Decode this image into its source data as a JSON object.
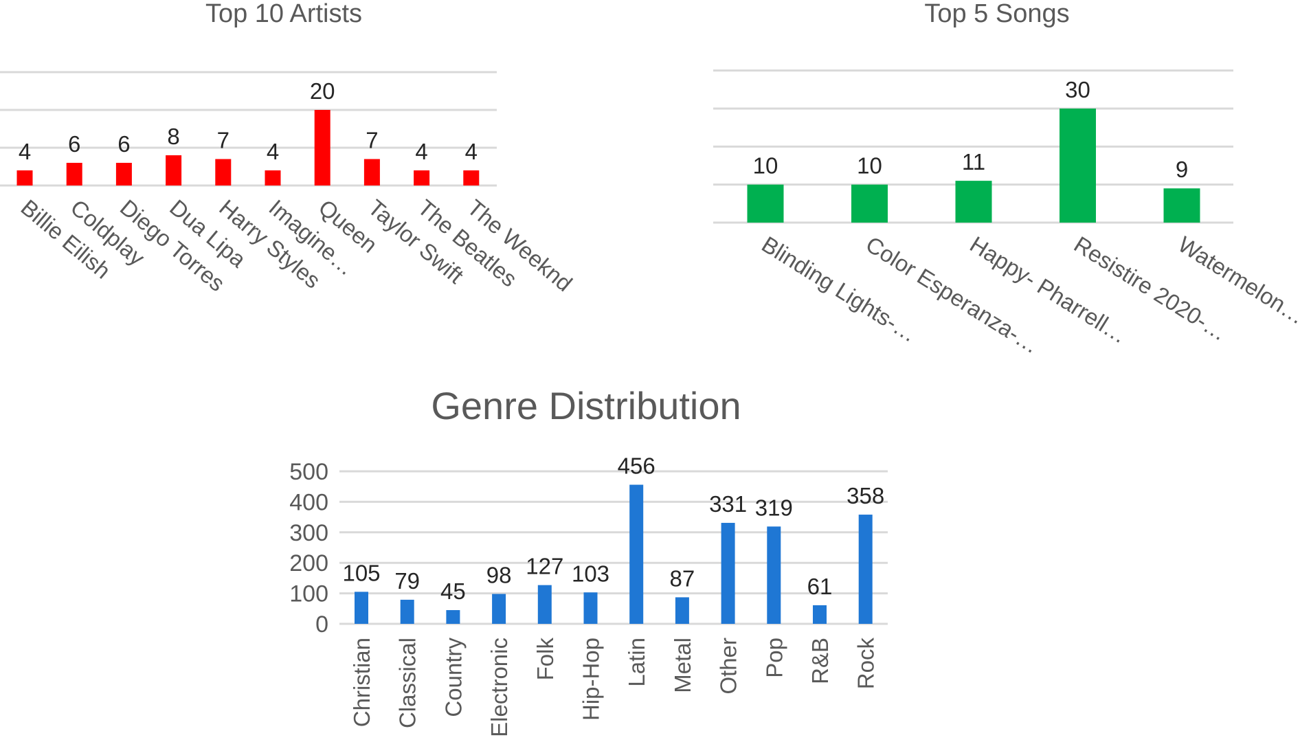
{
  "chart_data": [
    {
      "type": "bar",
      "title": "Top 10 Artists",
      "categories": [
        "Billie Eilish",
        "Coldplay",
        "Diego Torres",
        "Dua Lipa",
        "Harry Styles",
        "Imagine…",
        "Queen",
        "Taylor Swift",
        "The Beatles",
        "The Weeknd"
      ],
      "values": [
        4,
        6,
        6,
        8,
        7,
        4,
        20,
        7,
        4,
        4
      ],
      "color": "#ff0000",
      "ylim": [
        0,
        20
      ],
      "grid": true,
      "y_axis_labels": false,
      "data_labels": true
    },
    {
      "type": "bar",
      "title": "Top 5 Songs",
      "categories": [
        "Blinding Lights-…",
        "Color Esperanza-…",
        "Happy- Pharrell…",
        "Resistire 2020-…",
        "Watermelon…"
      ],
      "values": [
        10,
        10,
        11,
        30,
        9
      ],
      "color": "#00b050",
      "ylim": [
        0,
        30
      ],
      "grid": true,
      "y_axis_labels": false,
      "data_labels": true
    },
    {
      "type": "bar",
      "title": "Genre Distribution",
      "categories": [
        "Christian",
        "Classical",
        "Country",
        "Electronic",
        "Folk",
        "Hip-Hop",
        "Latin",
        "Metal",
        "Other",
        "Pop",
        "R&B",
        "Rock"
      ],
      "values": [
        105,
        79,
        45,
        98,
        127,
        103,
        456,
        87,
        331,
        319,
        61,
        358
      ],
      "color": "#1f77d4",
      "ylim": [
        0,
        500
      ],
      "yticks": [
        "0",
        "100",
        "200",
        "300",
        "400",
        "500"
      ],
      "grid": true,
      "y_axis_labels": true,
      "data_labels": true
    }
  ]
}
